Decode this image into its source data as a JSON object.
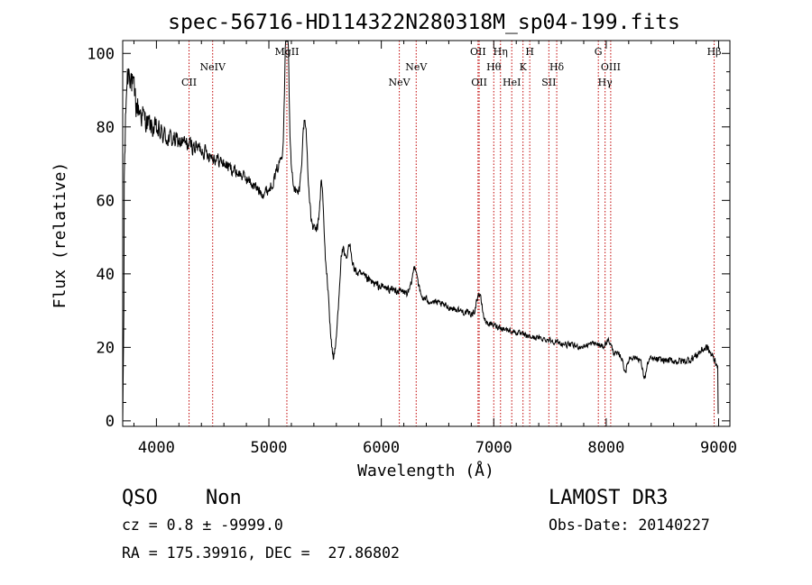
{
  "chart_data": {
    "type": "line",
    "title": "spec-56716-HD114322N280318M_sp04-199.fits",
    "xlabel": "Wavelength (Å)",
    "ylabel": "Flux (relative)",
    "xlim": [
      3700,
      9100
    ],
    "ylim": [
      -1.5,
      103.5
    ],
    "xticks": [
      4000,
      5000,
      6000,
      7000,
      8000,
      9000
    ],
    "yticks": [
      0,
      20,
      40,
      60,
      80,
      100
    ],
    "grid": false,
    "series": [
      {
        "name": "flux",
        "anchors": [
          [
            3700,
            30
          ],
          [
            3715,
            68
          ],
          [
            3735,
            92
          ],
          [
            3760,
            97
          ],
          [
            3790,
            90
          ],
          [
            3820,
            86
          ],
          [
            3860,
            84
          ],
          [
            3900,
            82
          ],
          [
            3950,
            80
          ],
          [
            4000,
            79
          ],
          [
            4100,
            77
          ],
          [
            4200,
            76
          ],
          [
            4300,
            75
          ],
          [
            4400,
            74
          ],
          [
            4500,
            72
          ],
          [
            4600,
            70
          ],
          [
            4700,
            68
          ],
          [
            4800,
            66
          ],
          [
            4900,
            63
          ],
          [
            4950,
            62
          ],
          [
            5000,
            63
          ],
          [
            5050,
            66
          ],
          [
            5100,
            71
          ],
          [
            5150,
            75
          ],
          [
            5180,
            71
          ],
          [
            5230,
            63
          ],
          [
            5300,
            58
          ],
          [
            5400,
            52
          ],
          [
            5450,
            52
          ],
          [
            5500,
            47
          ],
          [
            5550,
            45
          ],
          [
            5650,
            43
          ],
          [
            5750,
            41
          ],
          [
            5850,
            39
          ],
          [
            5950,
            37
          ],
          [
            6050,
            36
          ],
          [
            6200,
            35
          ],
          [
            6300,
            34
          ],
          [
            6400,
            33
          ],
          [
            6500,
            32
          ],
          [
            6600,
            31
          ],
          [
            6700,
            30
          ],
          [
            6800,
            29
          ],
          [
            6900,
            27
          ],
          [
            7000,
            26
          ],
          [
            7100,
            25
          ],
          [
            7200,
            24
          ],
          [
            7300,
            23
          ],
          [
            7400,
            22.5
          ],
          [
            7500,
            22
          ],
          [
            7600,
            21
          ],
          [
            7700,
            20.5
          ],
          [
            7800,
            19.5
          ],
          [
            7900,
            19
          ],
          [
            8000,
            18.5
          ],
          [
            8100,
            18
          ],
          [
            8200,
            17.5
          ],
          [
            8300,
            17
          ],
          [
            8400,
            16.8
          ],
          [
            8500,
            16.5
          ],
          [
            8600,
            16.3
          ],
          [
            8700,
            16.2
          ],
          [
            8800,
            17
          ],
          [
            8860,
            18
          ],
          [
            8900,
            18.5
          ],
          [
            8950,
            16.5
          ],
          [
            9000,
            15
          ]
        ],
        "features": [
          [
            5160,
            2.5,
            45
          ],
          [
            5320,
            4,
            25
          ],
          [
            5470,
            2.5,
            15
          ],
          [
            5575,
            6,
            -27
          ],
          [
            5650,
            3,
            6
          ],
          [
            5720,
            3,
            6
          ],
          [
            6300,
            4,
            8
          ],
          [
            6870,
            4,
            7
          ],
          [
            7900,
            12,
            2
          ],
          [
            8020,
            4,
            3
          ],
          [
            8170,
            3,
            -4
          ],
          [
            8340,
            3,
            -5
          ],
          [
            8870,
            10,
            1.5
          ]
        ],
        "noise": [
          [
            3700,
            8
          ],
          [
            3900,
            4.5
          ],
          [
            4300,
            3
          ],
          [
            4800,
            2.2
          ],
          [
            5500,
            2
          ],
          [
            6500,
            1.3
          ],
          [
            7500,
            1
          ],
          [
            8500,
            1.2
          ],
          [
            9000,
            1.8
          ]
        ]
      }
    ],
    "lines": [
      {
        "label": "CII",
        "wavelength": 4290,
        "row": 2
      },
      {
        "label": "NeIV",
        "wavelength": 4500,
        "row": 1
      },
      {
        "label": "MgII",
        "wavelength": 5160,
        "row": 0
      },
      {
        "label": "NeV",
        "wavelength": 6160,
        "row": 2
      },
      {
        "label": "NeV",
        "wavelength": 6310,
        "row": 1
      },
      {
        "label": "OII",
        "wavelength": 6860,
        "row": 0
      },
      {
        "label": "OII",
        "wavelength": 6870,
        "row": 2
      },
      {
        "label": "Hθ",
        "wavelength": 7000,
        "row": 1
      },
      {
        "label": "Hη",
        "wavelength": 7060,
        "row": 0
      },
      {
        "label": "HeI",
        "wavelength": 7160,
        "row": 2
      },
      {
        "label": "K",
        "wavelength": 7260,
        "row": 1
      },
      {
        "label": "H",
        "wavelength": 7320,
        "row": 0
      },
      {
        "label": "SII",
        "wavelength": 7490,
        "row": 2
      },
      {
        "label": "Hδ",
        "wavelength": 7560,
        "row": 1
      },
      {
        "label": "G",
        "wavelength": 7930,
        "row": 0
      },
      {
        "label": "Hγ",
        "wavelength": 7990,
        "row": 2
      },
      {
        "label": "OIII",
        "wavelength": 8040,
        "row": 1
      },
      {
        "label": "Hβ",
        "wavelength": 8960,
        "row": 0
      }
    ],
    "line_color": "#c00000",
    "trace_color": "#000000"
  },
  "info": {
    "class": "QSO",
    "subclass": "Non",
    "survey": "LAMOST DR3",
    "cz": "cz = 0.8 ± -9999.0",
    "obs_date": "Obs-Date: 20140227",
    "coords": "RA = 175.39916, DEC =  27.86802"
  }
}
